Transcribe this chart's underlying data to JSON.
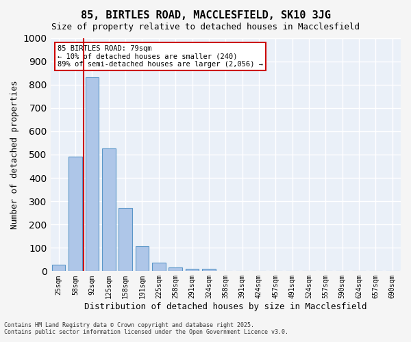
{
  "title": "85, BIRTLES ROAD, MACCLESFIELD, SK10 3JG",
  "subtitle": "Size of property relative to detached houses in Macclesfield",
  "xlabel": "Distribution of detached houses by size in Macclesfield",
  "ylabel": "Number of detached properties",
  "categories": [
    "25sqm",
    "58sqm",
    "92sqm",
    "125sqm",
    "158sqm",
    "191sqm",
    "225sqm",
    "258sqm",
    "291sqm",
    "324sqm",
    "358sqm",
    "391sqm",
    "424sqm",
    "457sqm",
    "491sqm",
    "524sqm",
    "557sqm",
    "590sqm",
    "624sqm",
    "657sqm",
    "690sqm"
  ],
  "values": [
    28,
    490,
    830,
    525,
    270,
    108,
    37,
    17,
    10,
    10,
    0,
    0,
    0,
    0,
    0,
    0,
    0,
    0,
    0,
    0,
    0
  ],
  "bar_color": "#aec6e8",
  "bar_edge_color": "#5a96c8",
  "background_color": "#eaf0f8",
  "grid_color": "#ffffff",
  "annotation_text": "85 BIRTLES ROAD: 79sqm\n← 10% of detached houses are smaller (240)\n89% of semi-detached houses are larger (2,056) →",
  "annotation_box_color": "#ffffff",
  "annotation_box_edge_color": "#cc0000",
  "red_line_x": 79,
  "ylim": [
    0,
    1000
  ],
  "yticks": [
    0,
    100,
    200,
    300,
    400,
    500,
    600,
    700,
    800,
    900,
    1000
  ],
  "footer_line1": "Contains HM Land Registry data © Crown copyright and database right 2025.",
  "footer_line2": "Contains public sector information licensed under the Open Government Licence v3.0."
}
